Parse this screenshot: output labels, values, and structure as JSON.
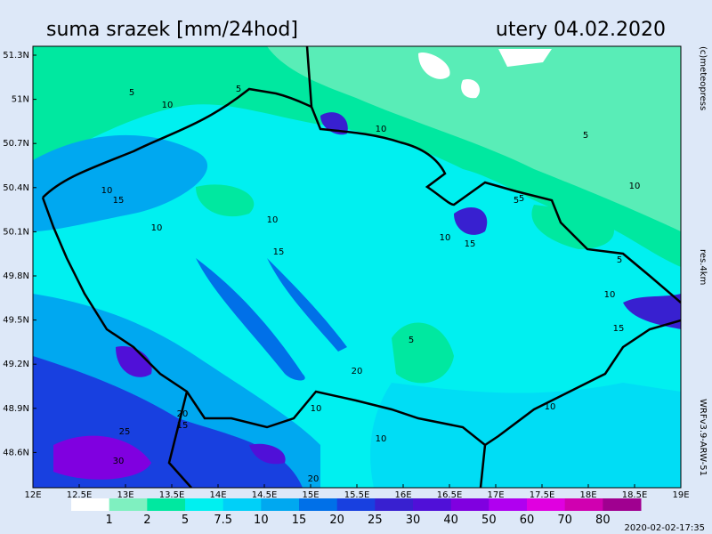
{
  "header": {
    "title": "suma srazek [mm/24hod]",
    "date": "utery 04.02.2020"
  },
  "lat_labels": [
    "51.3N",
    "51N",
    "50.7N",
    "50.4N",
    "50.1N",
    "49.8N",
    "49.5N",
    "49.2N",
    "48.9N",
    "48.6N"
  ],
  "lon_labels": [
    "12E",
    "12.5E",
    "13E",
    "13.5E",
    "14E",
    "14.5E",
    "15E",
    "15.5E",
    "16E",
    "16.5E",
    "17E",
    "17.5E",
    "18E",
    "18.5E",
    "19E"
  ],
  "side": {
    "copyright": "(c)meteopress",
    "resolution": "res.4km",
    "model": "WRFv3.9-ARW-51"
  },
  "timestamp": "2020-02-02-17:35",
  "contour_labels": [
    "5",
    "10",
    "5",
    "10",
    "5",
    "10",
    "10",
    "15",
    "5",
    "10",
    "15",
    "10",
    "5",
    "10",
    "15",
    "20",
    "20",
    "15",
    "25",
    "30",
    "20",
    "10",
    "10",
    "5",
    "10",
    "15",
    "10",
    "5"
  ],
  "legend": {
    "colors": [
      "#ffffff",
      "#7ff0c0",
      "#00e8a0",
      "#00f0f0",
      "#00d0f8",
      "#00a8f0",
      "#0070e8",
      "#1840e0",
      "#3820d0",
      "#5010d8",
      "#8000e0",
      "#b000f0",
      "#e000e0",
      "#d000b0",
      "#a00090"
    ],
    "labels": [
      "1",
      "2",
      "5",
      "7.5",
      "10",
      "15",
      "20",
      "25",
      "30",
      "40",
      "50",
      "60",
      "70",
      "80"
    ]
  }
}
